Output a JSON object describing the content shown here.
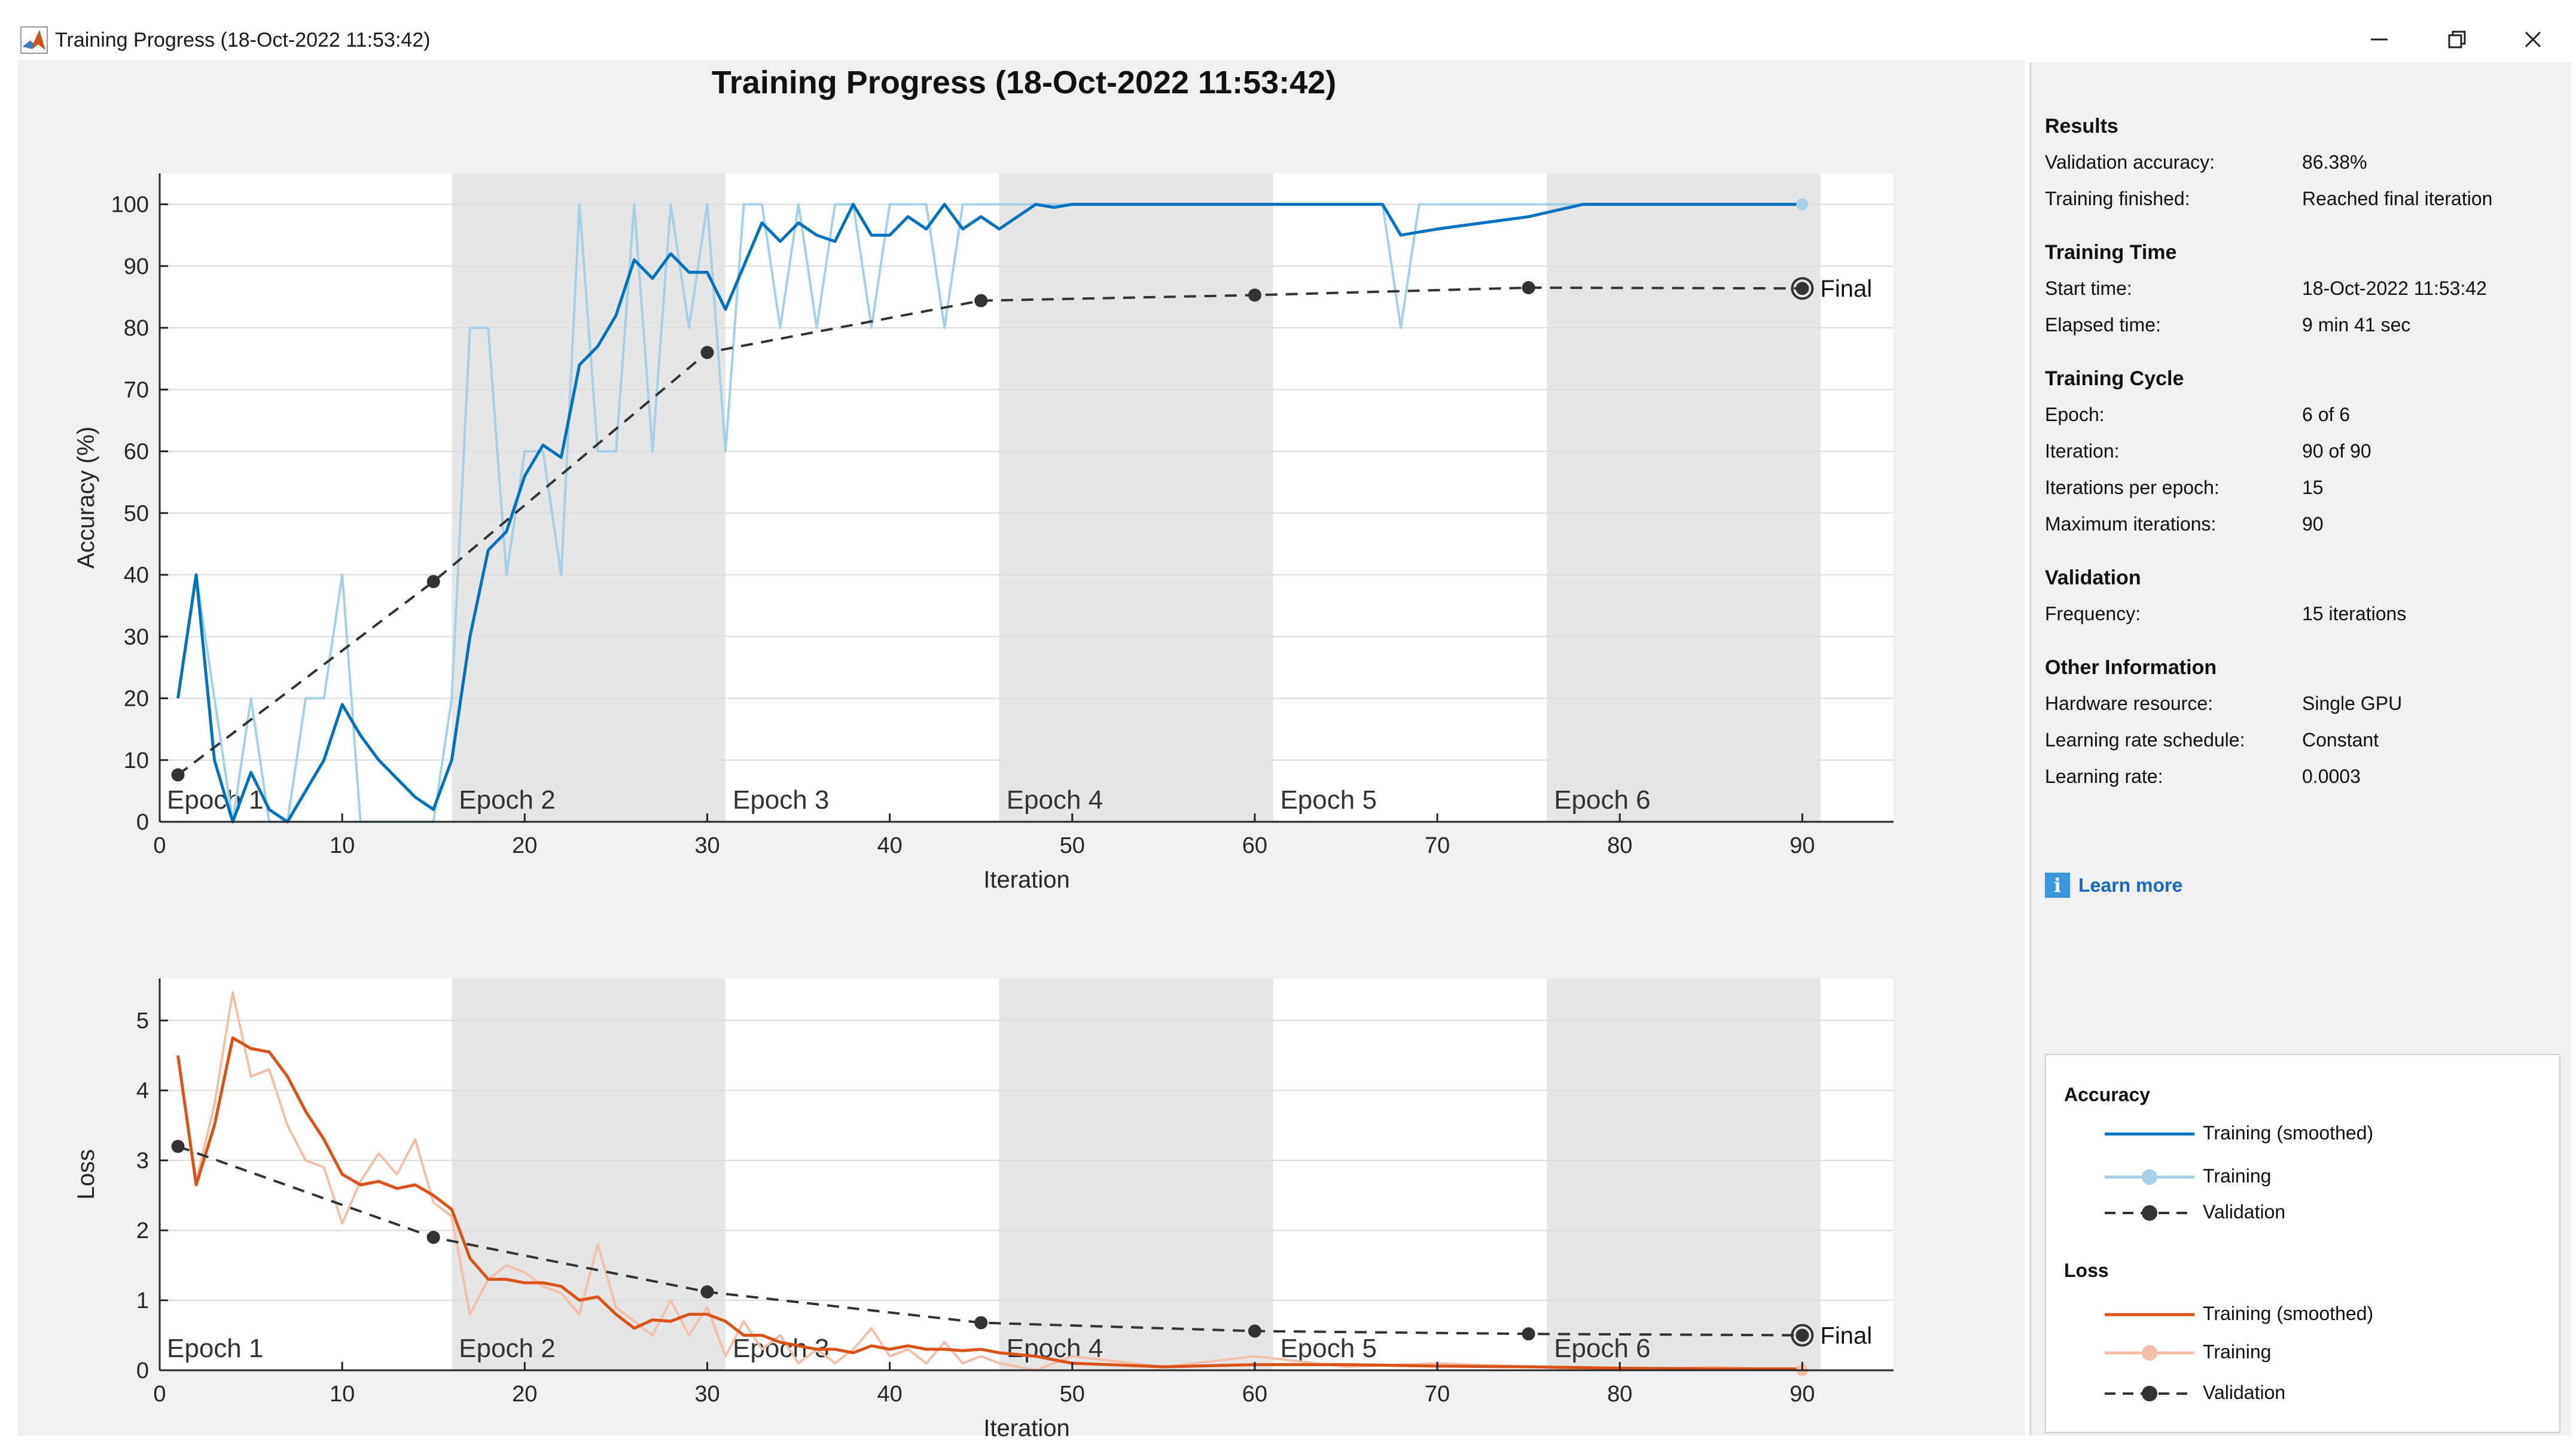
{
  "window": {
    "title": "Training Progress (18-Oct-2022 11:53:42)",
    "controls": {
      "minimize": "─",
      "maximize": "❐",
      "close": "✕"
    }
  },
  "figure_title": "Training Progress (18-Oct-2022 11:53:42)",
  "colors": {
    "accuracy_smoothed": "#0072bd",
    "accuracy_raw": "#a6cfe8",
    "loss_smoothed": "#d95319",
    "loss_raw": "#f4bfa7",
    "validation": "#333333",
    "epoch_shade": "#e6e6e6",
    "link": "#1767c6"
  },
  "chart_data": [
    {
      "type": "line",
      "name": "accuracy",
      "ylabel": "Accuracy (%)",
      "xlabel": "Iteration",
      "xlim": [
        0,
        95
      ],
      "ylim": [
        0,
        105
      ],
      "xticks": [
        "0",
        "10",
        "20",
        "30",
        "40",
        "50",
        "60",
        "70",
        "80",
        "90"
      ],
      "yticks": [
        "0",
        "10",
        "20",
        "30",
        "40",
        "50",
        "60",
        "70",
        "80",
        "90",
        "100"
      ],
      "epochs": [
        {
          "label": "Epoch 1",
          "start": 0,
          "end": 16,
          "shaded": false
        },
        {
          "label": "Epoch 2",
          "start": 16,
          "end": 31,
          "shaded": true
        },
        {
          "label": "Epoch 3",
          "start": 31,
          "end": 46,
          "shaded": false
        },
        {
          "label": "Epoch 4",
          "start": 46,
          "end": 61,
          "shaded": true
        },
        {
          "label": "Epoch 5",
          "start": 61,
          "end": 76,
          "shaded": false
        },
        {
          "label": "Epoch 6",
          "start": 76,
          "end": 91,
          "shaded": true
        }
      ],
      "series": [
        {
          "name": "Training",
          "role": "raw",
          "x": [
            1,
            2,
            3,
            4,
            5,
            6,
            7,
            8,
            9,
            10,
            11,
            12,
            13,
            14,
            15,
            16,
            17,
            18,
            19,
            20,
            21,
            22,
            23,
            24,
            25,
            26,
            27,
            28,
            29,
            30,
            31,
            32,
            33,
            34,
            35,
            36,
            37,
            38,
            39,
            40,
            41,
            42,
            43,
            44,
            45,
            46,
            47,
            48,
            49,
            50,
            55,
            60,
            65,
            67,
            68,
            69,
            70,
            75,
            80,
            85,
            90
          ],
          "y": [
            20,
            40,
            20,
            0,
            20,
            0,
            0,
            20,
            20,
            40,
            0,
            0,
            0,
            0,
            0,
            20,
            80,
            80,
            40,
            60,
            60,
            40,
            100,
            60,
            60,
            100,
            60,
            100,
            80,
            100,
            60,
            100,
            100,
            80,
            100,
            80,
            100,
            100,
            80,
            100,
            100,
            100,
            80,
            100,
            100,
            100,
            100,
            100,
            100,
            100,
            100,
            100,
            100,
            100,
            80,
            100,
            100,
            100,
            100,
            100,
            100
          ]
        },
        {
          "name": "Training (smoothed)",
          "role": "smoothed",
          "x": [
            1,
            2,
            3,
            4,
            5,
            6,
            7,
            8,
            9,
            10,
            11,
            12,
            13,
            14,
            15,
            16,
            17,
            18,
            19,
            20,
            21,
            22,
            23,
            24,
            25,
            26,
            27,
            28,
            29,
            30,
            31,
            32,
            33,
            34,
            35,
            36,
            37,
            38,
            39,
            40,
            41,
            42,
            43,
            44,
            45,
            46,
            47,
            48,
            49,
            50,
            55,
            60,
            65,
            67,
            68,
            70,
            75,
            78,
            80,
            85,
            90
          ],
          "y": [
            20,
            40,
            10,
            0,
            8,
            2,
            0,
            5,
            10,
            19,
            14,
            10,
            7,
            4,
            2,
            10,
            30,
            44,
            47,
            56,
            61,
            59,
            74,
            77,
            82,
            91,
            88,
            92,
            89,
            89,
            83,
            90,
            97,
            94,
            97,
            95,
            94,
            100,
            95,
            95,
            98,
            96,
            100,
            96,
            98,
            96,
            98,
            100,
            99.5,
            100,
            100,
            100,
            100,
            100,
            95,
            96,
            98,
            100,
            100,
            100,
            100
          ]
        },
        {
          "name": "Validation",
          "role": "validation",
          "x": [
            1,
            15,
            30,
            45,
            60,
            75,
            90
          ],
          "y": [
            7.6,
            38.9,
            76,
            84.4,
            85.3,
            86.5,
            86.38
          ]
        }
      ],
      "final_label": "Final"
    },
    {
      "type": "line",
      "name": "loss",
      "ylabel": "Loss",
      "xlabel": "Iteration",
      "xlim": [
        0,
        95
      ],
      "ylim": [
        0,
        5.6
      ],
      "xticks": [
        "0",
        "10",
        "20",
        "30",
        "40",
        "50",
        "60",
        "70",
        "80",
        "90"
      ],
      "yticks": [
        "0",
        "1",
        "2",
        "3",
        "4",
        "5"
      ],
      "epochs": [
        {
          "label": "Epoch 1",
          "start": 0,
          "end": 16,
          "shaded": false
        },
        {
          "label": "Epoch 2",
          "start": 16,
          "end": 31,
          "shaded": true
        },
        {
          "label": "Epoch 3",
          "start": 31,
          "end": 46,
          "shaded": false
        },
        {
          "label": "Epoch 4",
          "start": 46,
          "end": 61,
          "shaded": true
        },
        {
          "label": "Epoch 5",
          "start": 61,
          "end": 76,
          "shaded": false
        },
        {
          "label": "Epoch 6",
          "start": 76,
          "end": 91,
          "shaded": true
        }
      ],
      "series": [
        {
          "name": "Training",
          "role": "raw",
          "x": [
            1,
            2,
            3,
            4,
            5,
            6,
            7,
            8,
            9,
            10,
            11,
            12,
            13,
            14,
            15,
            16,
            17,
            18,
            19,
            20,
            21,
            22,
            23,
            24,
            25,
            26,
            27,
            28,
            29,
            30,
            31,
            32,
            33,
            34,
            35,
            36,
            37,
            38,
            39,
            40,
            41,
            42,
            43,
            44,
            45,
            46,
            48,
            50,
            55,
            60,
            65,
            70,
            75,
            80,
            85,
            90
          ],
          "y": [
            4.5,
            2.7,
            3.8,
            5.4,
            4.2,
            4.3,
            3.5,
            3.0,
            2.9,
            2.1,
            2.7,
            3.1,
            2.8,
            3.3,
            2.4,
            2.2,
            0.8,
            1.3,
            1.5,
            1.4,
            1.2,
            1.1,
            0.8,
            1.8,
            0.9,
            0.7,
            0.5,
            1.0,
            0.5,
            0.9,
            0.2,
            0.7,
            0.3,
            0.5,
            0.1,
            0.3,
            0.1,
            0.3,
            0.6,
            0.2,
            0.3,
            0.1,
            0.4,
            0.1,
            0.2,
            0.1,
            0.0,
            0.2,
            0.05,
            0.2,
            0.05,
            0.1,
            0.05,
            0.0,
            0.05,
            0.0
          ]
        },
        {
          "name": "Training (smoothed)",
          "role": "smoothed",
          "x": [
            1,
            2,
            3,
            4,
            5,
            6,
            7,
            8,
            9,
            10,
            11,
            12,
            13,
            14,
            15,
            16,
            17,
            18,
            19,
            20,
            21,
            22,
            23,
            24,
            25,
            26,
            27,
            28,
            29,
            30,
            31,
            32,
            33,
            34,
            35,
            36,
            37,
            38,
            39,
            40,
            41,
            42,
            43,
            44,
            45,
            46,
            48,
            50,
            55,
            60,
            65,
            70,
            75,
            80,
            85,
            90
          ],
          "y": [
            4.5,
            2.65,
            3.5,
            4.75,
            4.6,
            4.55,
            4.2,
            3.7,
            3.3,
            2.8,
            2.65,
            2.7,
            2.6,
            2.65,
            2.5,
            2.3,
            1.6,
            1.3,
            1.3,
            1.25,
            1.25,
            1.2,
            1.0,
            1.05,
            0.8,
            0.6,
            0.72,
            0.7,
            0.8,
            0.8,
            0.7,
            0.5,
            0.5,
            0.4,
            0.35,
            0.3,
            0.3,
            0.25,
            0.35,
            0.3,
            0.35,
            0.3,
            0.3,
            0.28,
            0.3,
            0.25,
            0.2,
            0.1,
            0.05,
            0.08,
            0.08,
            0.06,
            0.05,
            0.03,
            0.02,
            0.02
          ]
        },
        {
          "name": "Validation",
          "role": "validation",
          "x": [
            1,
            15,
            30,
            45,
            60,
            75,
            90
          ],
          "y": [
            3.2,
            1.9,
            1.12,
            0.68,
            0.56,
            0.52,
            0.5
          ]
        }
      ],
      "final_label": "Final"
    }
  ],
  "info": {
    "results": {
      "heading": "Results",
      "rows": [
        {
          "label": "Validation accuracy:",
          "value": "86.38%"
        },
        {
          "label": "Training finished:",
          "value": "Reached final iteration"
        }
      ]
    },
    "training_time": {
      "heading": "Training Time",
      "rows": [
        {
          "label": "Start time:",
          "value": "18-Oct-2022 11:53:42"
        },
        {
          "label": "Elapsed time:",
          "value": "9 min 41 sec"
        }
      ]
    },
    "training_cycle": {
      "heading": "Training Cycle",
      "rows": [
        {
          "label": "Epoch:",
          "value": "6 of 6"
        },
        {
          "label": "Iteration:",
          "value": "90 of 90"
        },
        {
          "label": "Iterations per epoch:",
          "value": "15"
        },
        {
          "label": "Maximum iterations:",
          "value": "90"
        }
      ]
    },
    "validation": {
      "heading": "Validation",
      "rows": [
        {
          "label": "Frequency:",
          "value": "15 iterations"
        }
      ]
    },
    "other": {
      "heading": "Other Information",
      "rows": [
        {
          "label": "Hardware resource:",
          "value": "Single GPU"
        },
        {
          "label": "Learning rate schedule:",
          "value": "Constant"
        },
        {
          "label": "Learning rate:",
          "value": "0.0003"
        }
      ]
    },
    "learn_more": "Learn more",
    "info_glyph": "i"
  },
  "legend": {
    "accuracy_heading": "Accuracy",
    "loss_heading": "Loss",
    "accuracy_items": [
      "Training (smoothed)",
      "Training",
      "Validation"
    ],
    "loss_items": [
      "Training (smoothed)",
      "Training",
      "Validation"
    ]
  }
}
